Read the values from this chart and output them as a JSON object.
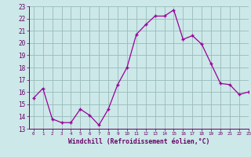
{
  "x": [
    0,
    1,
    2,
    3,
    4,
    5,
    6,
    7,
    8,
    9,
    10,
    11,
    12,
    13,
    14,
    15,
    16,
    17,
    18,
    19,
    20,
    21,
    22,
    23
  ],
  "y": [
    15.5,
    16.3,
    13.8,
    13.5,
    13.5,
    14.6,
    14.1,
    13.3,
    14.6,
    16.6,
    18.0,
    20.7,
    21.5,
    22.2,
    22.2,
    22.7,
    20.3,
    20.6,
    19.9,
    18.3,
    16.7,
    16.6,
    15.8,
    16.0
  ],
  "line_color": "#990099",
  "marker_color": "#990099",
  "bg_color": "#cce8e8",
  "grid_color": "#99bbbb",
  "xlabel": "Windchill (Refroidissement éolien,°C)",
  "xlabel_color": "#660066",
  "tick_color": "#660066",
  "ylim_min": 13,
  "ylim_max": 23,
  "xlim_min": -0.5,
  "xlim_max": 23,
  "yticks": [
    13,
    14,
    15,
    16,
    17,
    18,
    19,
    20,
    21,
    22,
    23
  ],
  "xticks": [
    0,
    1,
    2,
    3,
    4,
    5,
    6,
    7,
    8,
    9,
    10,
    11,
    12,
    13,
    14,
    15,
    16,
    17,
    18,
    19,
    20,
    21,
    22,
    23
  ]
}
